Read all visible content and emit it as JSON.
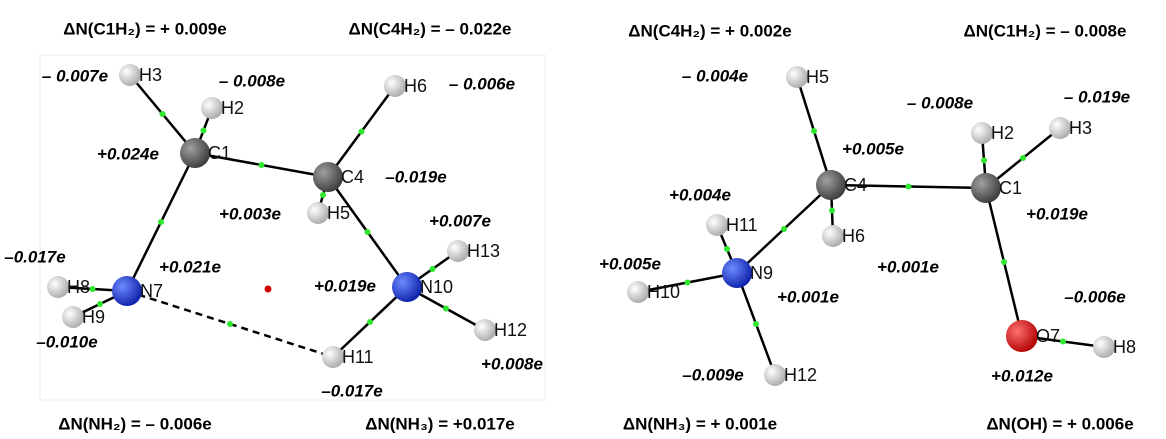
{
  "panels": [
    {
      "summaries": [
        "ΔN(C1H₂) = + 0.009e",
        "ΔN(C4H₂) = – 0.022e",
        "ΔN(NH₂) = – 0.006e",
        "ΔN(NH₃) = +0.017e"
      ],
      "atom_labels": [
        "H3",
        "H2",
        "C1",
        "C4",
        "H6",
        "H5",
        "N7",
        "N10",
        "H8",
        "H9",
        "H13",
        "H12",
        "H11"
      ],
      "charges": [
        "– 0.007e",
        "– 0.008e",
        "– 0.006e",
        "+0.024e",
        "–0.019e",
        "+0.003e",
        "+0.007e",
        "–0.017e",
        "+0.021e",
        "+0.019e",
        "–0.010e",
        "+0.008e",
        "–0.017e"
      ]
    },
    {
      "summaries": [
        "ΔN(C4H₂) = + 0.002e",
        "ΔN(C1H₂) = – 0.008e",
        "ΔN(NH₃) = + 0.001e",
        "ΔN(OH) = + 0.006e"
      ],
      "atom_labels": [
        "H5",
        "C4",
        "H6",
        "H11",
        "N9",
        "H10",
        "H12",
        "C1",
        "H2",
        "H3",
        "O7",
        "H8"
      ],
      "charges": [
        "– 0.004e",
        "– 0.008e",
        "– 0.019e",
        "+0.005e",
        "+0.004e",
        "+0.019e",
        "+0.005e",
        "+0.001e",
        "+0.001e",
        "–0.006e",
        "–0.009e",
        "+0.012e"
      ]
    }
  ]
}
